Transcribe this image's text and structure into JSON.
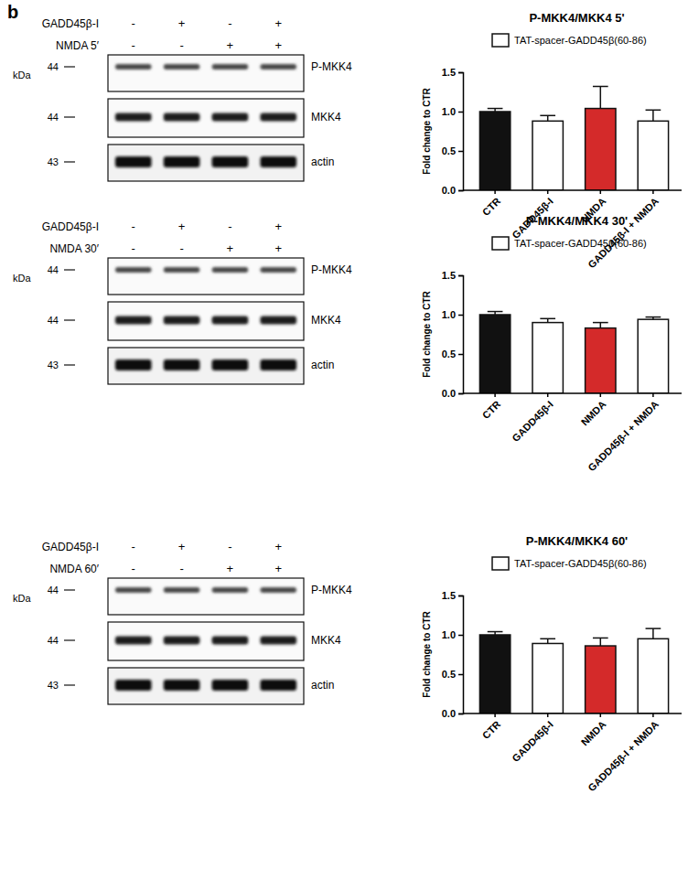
{
  "panel_label": "b",
  "blots": [
    {
      "kda_label": "kDa",
      "treatments": [
        {
          "label": "GADD45β-I",
          "signs": [
            "-",
            "+",
            "-",
            "+"
          ]
        },
        {
          "label": "NMDA 5′",
          "signs": [
            "-",
            "-",
            "+",
            "+"
          ]
        }
      ],
      "bands": [
        {
          "label": "P-MKK4",
          "kda": 44
        },
        {
          "label": "MKK4",
          "kda": 44
        },
        {
          "label": "actin",
          "kda": 43
        }
      ]
    },
    {
      "kda_label": "kDa",
      "treatments": [
        {
          "label": "GADD45β-I",
          "signs": [
            "-",
            "+",
            "-",
            "+"
          ]
        },
        {
          "label": "NMDA 30′",
          "signs": [
            "-",
            "-",
            "+",
            "+"
          ]
        }
      ],
      "bands": [
        {
          "label": "P-MKK4",
          "kda": 44
        },
        {
          "label": "MKK4",
          "kda": 44
        },
        {
          "label": "actin",
          "kda": 43
        }
      ]
    },
    {
      "kda_label": "kDa",
      "treatments": [
        {
          "label": "GADD45β-I",
          "signs": [
            "-",
            "+",
            "-",
            "+"
          ]
        },
        {
          "label": "NMDA 60′",
          "signs": [
            "-",
            "-",
            "+",
            "+"
          ]
        }
      ],
      "bands": [
        {
          "label": "P-MKK4",
          "kda": 44
        },
        {
          "label": "MKK4",
          "kda": 44
        },
        {
          "label": "actin",
          "kda": 43
        }
      ]
    }
  ],
  "chart_data": [
    {
      "type": "bar",
      "title": "P-MKK4/MKK4 5'",
      "y_label": "Fold change to CTR",
      "categories": [
        "CTR",
        "GADD45β-I",
        "NMDA",
        "GADD45β-I + NMDA"
      ],
      "series": [
        {
          "name": "TAT-spacer-GADD45β(60-86)",
          "color": "#ffffff",
          "values": [
            1.0,
            0.88,
            1.04,
            0.88
          ],
          "errors": [
            0.04,
            0.07,
            0.28,
            0.14
          ]
        }
      ],
      "colors": [
        "#111111",
        "#ffffff",
        "#d42a2a",
        "#ffffff"
      ],
      "ylim": [
        0,
        1.5
      ],
      "yticks": [
        {
          "value": 0,
          "label": "0.0"
        },
        {
          "value": 0.5,
          "label": "0.5"
        },
        {
          "value": 1,
          "label": "1.0"
        },
        {
          "value": 1.5,
          "label": "1.5"
        }
      ],
      "grid": false,
      "legend": "upper right"
    },
    {
      "type": "bar",
      "title": "P-MKK4/MKK4 30'",
      "y_label": "Fold change to CTR",
      "categories": [
        "CTR",
        "GADD45β-I",
        "NMDA",
        "GADD45β-I + NMDA"
      ],
      "series": [
        {
          "name": "TAT-spacer-GADD45β(60-86)",
          "color": "#ffffff",
          "values": [
            1.0,
            0.9,
            0.83,
            0.94
          ],
          "errors": [
            0.04,
            0.05,
            0.07,
            0.03
          ]
        }
      ],
      "colors": [
        "#111111",
        "#ffffff",
        "#d42a2a",
        "#ffffff"
      ],
      "ylim": [
        0,
        1.5
      ],
      "yticks": [
        {
          "value": 0,
          "label": "0.0"
        },
        {
          "value": 0.5,
          "label": "0.5"
        },
        {
          "value": 1,
          "label": "1.0"
        },
        {
          "value": 1.5,
          "label": "1.5"
        }
      ],
      "grid": false,
      "legend": "upper right"
    },
    {
      "type": "bar",
      "title": "P-MKK4/MKK4 60'",
      "y_label": "Fold change to CTR",
      "categories": [
        "CTR",
        "GADD45β-I",
        "NMDA",
        "GADD45β-I + NMDA"
      ],
      "series": [
        {
          "name": "TAT-spacer-GADD45β(60-86)",
          "color": "#ffffff",
          "values": [
            1.0,
            0.89,
            0.86,
            0.95
          ],
          "errors": [
            0.04,
            0.06,
            0.1,
            0.13
          ]
        }
      ],
      "colors": [
        "#111111",
        "#ffffff",
        "#d42a2a",
        "#ffffff"
      ],
      "ylim": [
        0,
        1.5
      ],
      "yticks": [
        {
          "value": 0,
          "label": "0.0"
        },
        {
          "value": 0.5,
          "label": "0.5"
        },
        {
          "value": 1,
          "label": "1.0"
        },
        {
          "value": 1.5,
          "label": "1.5"
        }
      ],
      "grid": false,
      "legend": "upper right"
    }
  ]
}
